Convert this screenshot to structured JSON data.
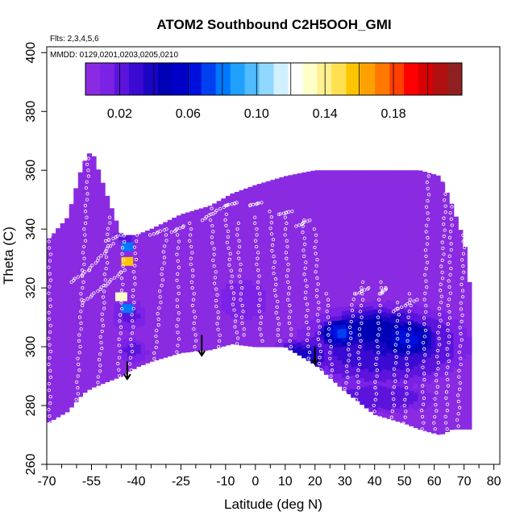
{
  "chart_data": {
    "type": "heatmap",
    "title": "ATOM2 Southbound C2H5OOH_GMI",
    "flights_label": "Flts: 2,3,4,5,6",
    "dates_label": "MMDD: 0129,0201,0203,0205,0210",
    "xlabel": "Latitude (deg N)",
    "ylabel": "Theta (C)",
    "xlim": [
      -70,
      82
    ],
    "ylim": [
      260,
      402
    ],
    "x_ticks": [
      "-70",
      "-55",
      "-40",
      "-25",
      "-10",
      "0",
      "10",
      "20",
      "30",
      "40",
      "50",
      "60",
      "70",
      "80"
    ],
    "x_tick_values": [
      -70,
      -55,
      -40,
      -25,
      -10,
      0,
      10,
      20,
      30,
      40,
      50,
      60,
      70,
      80
    ],
    "x_minor_ticks": [
      -65,
      -60,
      -50,
      -45,
      -35,
      -30,
      -20,
      -15,
      -5,
      5,
      15,
      25,
      35,
      45,
      55,
      65,
      75
    ],
    "y_ticks": [
      "260",
      "280",
      "300",
      "320",
      "340",
      "360",
      "380",
      "400"
    ],
    "y_tick_values": [
      260,
      280,
      300,
      320,
      340,
      360,
      380,
      400
    ],
    "colorbar": {
      "range": [
        0.0,
        0.22
      ],
      "tick_labels": [
        "0.02",
        "0.06",
        "0.10",
        "0.14",
        "0.18"
      ],
      "tick_values": [
        0.02,
        0.06,
        0.1,
        0.14,
        0.18
      ],
      "colors": [
        "#8a2be2",
        "#7b22e6",
        "#5c14dc",
        "#3a0ad2",
        "#1a05c4",
        "#0000b4",
        "#0000c8",
        "#0010dc",
        "#0040f0",
        "#0078ff",
        "#20a0ff",
        "#50bcff",
        "#90d8ff",
        "#d0f0ff",
        "#ffffff",
        "#ffffc8",
        "#fff090",
        "#ffe050",
        "#ffc400",
        "#ffa000",
        "#ff7800",
        "#ff4000",
        "#ff0000",
        "#d80000",
        "#b01010",
        "#902020"
      ]
    },
    "background_value": 0.004,
    "field_profile": [
      {
        "lat": -70,
        "bottom": 274,
        "top": 336
      },
      {
        "lat": -63,
        "bottom": 278,
        "top": 344
      },
      {
        "lat": -58,
        "bottom": 284,
        "top": 362
      },
      {
        "lat": -55,
        "bottom": 286,
        "top": 367
      },
      {
        "lat": -50,
        "bottom": 288,
        "top": 352
      },
      {
        "lat": -45,
        "bottom": 290,
        "top": 338
      },
      {
        "lat": -40,
        "bottom": 293,
        "top": 338
      },
      {
        "lat": -35,
        "bottom": 295,
        "top": 340
      },
      {
        "lat": -25,
        "bottom": 298,
        "top": 345
      },
      {
        "lat": -15,
        "bottom": 299,
        "top": 348
      },
      {
        "lat": -8,
        "bottom": 301,
        "top": 352
      },
      {
        "lat": 0,
        "bottom": 300,
        "top": 355
      },
      {
        "lat": 10,
        "bottom": 300,
        "top": 358
      },
      {
        "lat": 20,
        "bottom": 294,
        "top": 360
      },
      {
        "lat": 30,
        "bottom": 285,
        "top": 360
      },
      {
        "lat": 40,
        "bottom": 277,
        "top": 360
      },
      {
        "lat": 50,
        "bottom": 274,
        "top": 360
      },
      {
        "lat": 55,
        "bottom": 272,
        "top": 360
      },
      {
        "lat": 62,
        "bottom": 270,
        "top": 358
      },
      {
        "lat": 66,
        "bottom": 272,
        "top": 348
      },
      {
        "lat": 70,
        "bottom": 272,
        "top": 336
      },
      {
        "lat": 72,
        "bottom": 272,
        "top": 320
      }
    ],
    "field_blobs": [
      {
        "lat": 42,
        "theta": 300,
        "rlat": 32,
        "rtheta": 16,
        "value": 0.035
      },
      {
        "lat": 40,
        "theta": 305,
        "rlat": 20,
        "rtheta": 9,
        "value": 0.05
      },
      {
        "lat": 50,
        "theta": 302,
        "rlat": 12,
        "rtheta": 8,
        "value": 0.065
      },
      {
        "lat": 28,
        "theta": 304,
        "rlat": 9,
        "rtheta": 6,
        "value": 0.07
      },
      {
        "lat": 15,
        "theta": 296,
        "rlat": 12,
        "rtheta": 7,
        "value": 0.04
      },
      {
        "lat": -43,
        "theta": 310,
        "rlat": 7,
        "rtheta": 6,
        "value": 0.02
      },
      {
        "lat": -42,
        "theta": 298,
        "rlat": 6,
        "rtheta": 5,
        "value": 0.02
      },
      {
        "lat": -44,
        "theta": 337,
        "rlat": 4,
        "rtheta": 4,
        "value": 0.025
      },
      {
        "lat": -5,
        "theta": 315,
        "rlat": 12,
        "rtheta": 10,
        "value": 0.012
      },
      {
        "lat": 40,
        "theta": 282,
        "rlat": 22,
        "rtheta": 6,
        "value": 0.025
      }
    ],
    "spots": [
      {
        "lat": -43,
        "theta": 334,
        "value": 0.08
      },
      {
        "lat": -43,
        "theta": 329,
        "value": 0.16
      },
      {
        "lat": -43,
        "theta": 313,
        "value": 0.08
      },
      {
        "lat": -45,
        "theta": 317,
        "value": 0.13
      }
    ],
    "flight_tracks": [
      {
        "lat0": -69,
        "theta0": 272,
        "lat1": -69,
        "theta1": 338
      },
      {
        "lat0": -62,
        "theta0": 322,
        "lat1": -56,
        "theta1": 326
      },
      {
        "lat0": -56,
        "theta0": 326,
        "lat1": -48,
        "theta1": 335
      },
      {
        "lat0": -58,
        "theta0": 315,
        "lat1": -44,
        "theta1": 326
      },
      {
        "lat0": -60,
        "theta0": 280,
        "lat1": -56,
        "theta1": 364
      },
      {
        "lat0": -53,
        "theta0": 282,
        "lat1": -49,
        "theta1": 344
      },
      {
        "lat0": -46,
        "theta0": 288,
        "lat1": -44,
        "theta1": 344
      },
      {
        "lat0": -42,
        "theta0": 290,
        "lat1": -40,
        "theta1": 338
      },
      {
        "lat0": -34,
        "theta0": 294,
        "lat1": -30,
        "theta1": 338
      },
      {
        "lat0": -26,
        "theta0": 296,
        "lat1": -26,
        "theta1": 338
      },
      {
        "lat0": -20,
        "theta0": 298,
        "lat1": -22,
        "theta1": 342
      },
      {
        "lat0": -12,
        "theta0": 300,
        "lat1": -15,
        "theta1": 347
      },
      {
        "lat0": -6,
        "theta0": 301,
        "lat1": -10,
        "theta1": 345
      },
      {
        "lat0": -4,
        "theta0": 304,
        "lat1": -6,
        "theta1": 342
      },
      {
        "lat0": 2,
        "theta0": 302,
        "lat1": 0,
        "theta1": 344
      },
      {
        "lat0": 8,
        "theta0": 302,
        "lat1": 5,
        "theta1": 346
      },
      {
        "lat0": 12,
        "theta0": 300,
        "lat1": 10,
        "theta1": 344
      },
      {
        "lat0": 18,
        "theta0": 294,
        "lat1": 16,
        "theta1": 343
      },
      {
        "lat0": 22,
        "theta0": 288,
        "lat1": 20,
        "theta1": 340
      },
      {
        "lat0": 26,
        "theta0": 284,
        "lat1": 24,
        "theta1": 318
      },
      {
        "lat0": 30,
        "theta0": 282,
        "lat1": 33,
        "theta1": 318
      },
      {
        "lat0": 34,
        "theta0": 280,
        "lat1": 36,
        "theta1": 322
      },
      {
        "lat0": 40,
        "theta0": 278,
        "lat1": 42,
        "theta1": 322
      },
      {
        "lat0": 46,
        "theta0": 276,
        "lat1": 48,
        "theta1": 315
      },
      {
        "lat0": 50,
        "theta0": 274,
        "lat1": 52,
        "theta1": 318
      },
      {
        "lat0": 56,
        "theta0": 272,
        "lat1": 58,
        "theta1": 358
      },
      {
        "lat0": 60,
        "theta0": 270,
        "lat1": 64,
        "theta1": 356
      },
      {
        "lat0": 64,
        "theta0": 272,
        "lat1": 66,
        "theta1": 356
      },
      {
        "lat0": 68,
        "theta0": 273,
        "lat1": 70,
        "theta1": 340
      },
      {
        "lat0": -50,
        "theta0": 336,
        "lat1": -40,
        "theta1": 340
      },
      {
        "lat0": -35,
        "theta0": 338,
        "lat1": -30,
        "theta1": 340
      },
      {
        "lat0": -28,
        "theta0": 339,
        "lat1": -24,
        "theta1": 341
      },
      {
        "lat0": -18,
        "theta0": 343,
        "lat1": -10,
        "theta1": 348
      },
      {
        "lat0": -10,
        "theta0": 348,
        "lat1": -6,
        "theta1": 349
      },
      {
        "lat0": -2,
        "theta0": 348,
        "lat1": 2,
        "theta1": 349
      },
      {
        "lat0": 8,
        "theta0": 345,
        "lat1": 12,
        "theta1": 346
      },
      {
        "lat0": 14,
        "theta0": 341,
        "lat1": 18,
        "theta1": 343
      },
      {
        "lat0": 34,
        "theta0": 318,
        "lat1": 38,
        "theta1": 320
      },
      {
        "lat0": 42,
        "theta0": 318,
        "lat1": 44,
        "theta1": 320
      },
      {
        "lat0": 46,
        "theta0": 312,
        "lat1": 54,
        "theta1": 316
      }
    ],
    "arrows": [
      {
        "lat": -43,
        "theta_from": 295,
        "theta_to": 289
      },
      {
        "lat": -18,
        "theta_from": 304,
        "theta_to": 297
      },
      {
        "lat": 20,
        "theta_from": 300,
        "theta_to": 294
      }
    ]
  }
}
